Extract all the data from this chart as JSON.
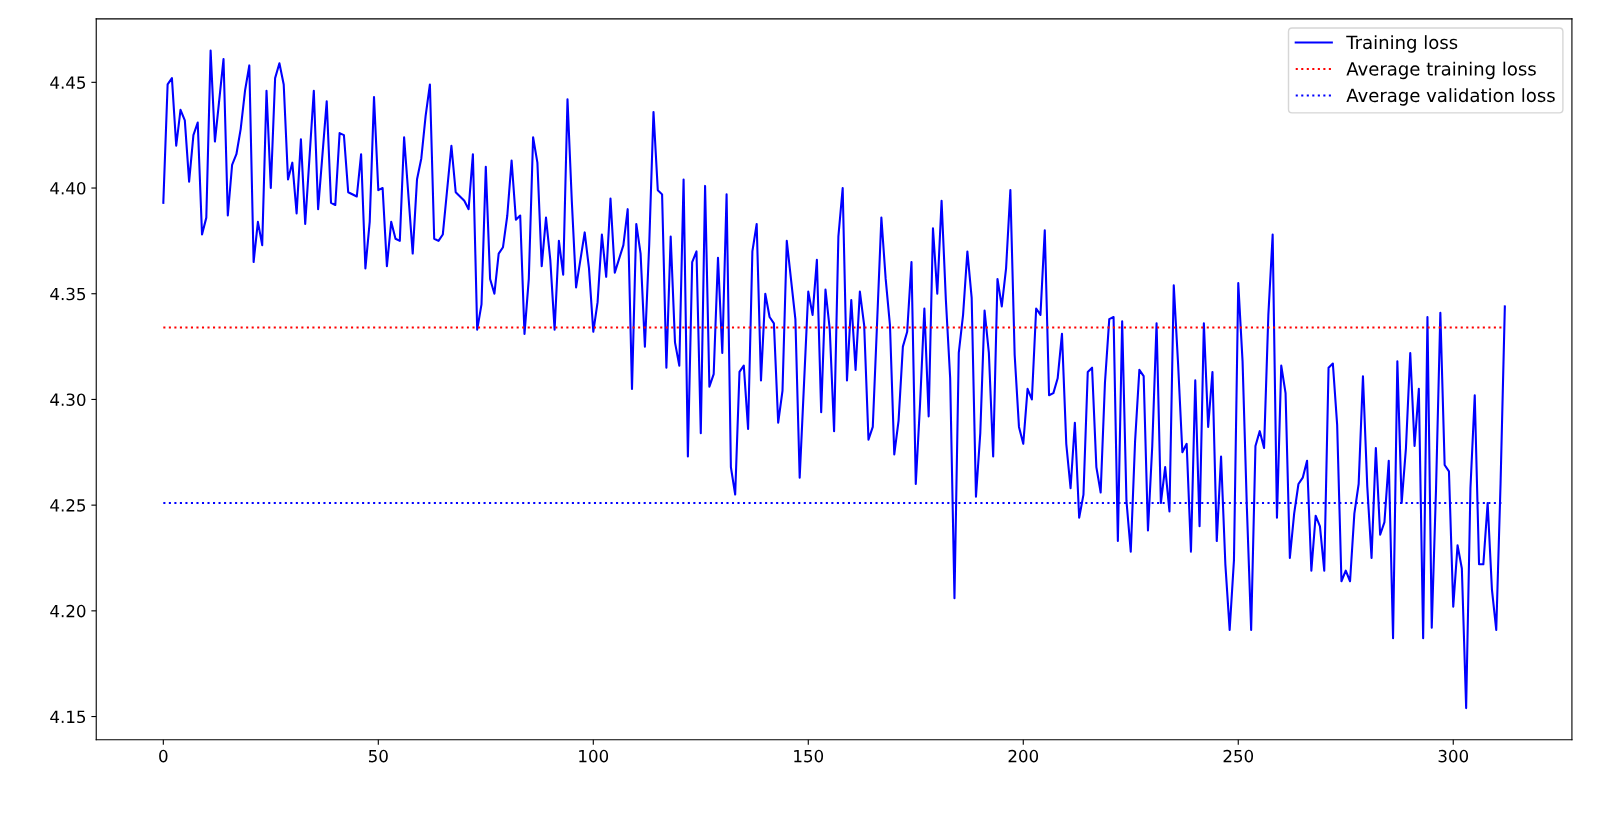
{
  "chart_data": {
    "type": "line",
    "x": [
      0,
      1,
      2,
      3,
      4,
      5,
      6,
      7,
      8,
      9,
      10,
      11,
      12,
      14,
      15,
      16,
      17,
      18,
      19,
      20,
      21,
      22,
      23,
      24,
      25,
      26,
      27,
      28,
      29,
      30,
      31,
      32,
      33,
      35,
      36,
      38,
      39,
      40,
      41,
      42,
      43,
      45,
      46,
      47,
      48,
      49,
      50,
      51,
      52,
      53,
      54,
      55,
      56,
      58,
      59,
      60,
      61,
      62,
      63,
      64,
      65,
      67,
      68,
      70,
      71,
      72,
      73,
      74,
      75,
      76,
      77,
      78,
      79,
      80,
      81,
      82,
      83,
      84,
      85,
      86,
      87,
      88,
      89,
      90,
      91,
      92,
      93,
      94,
      95,
      96,
      97,
      98,
      99,
      100,
      101,
      102,
      103,
      104,
      105,
      107,
      108,
      109,
      110,
      111,
      112,
      113,
      114,
      115,
      116,
      117,
      118,
      119,
      120,
      121,
      122,
      123,
      124,
      125,
      126,
      127,
      128,
      129,
      130,
      131,
      132,
      133,
      134,
      135,
      136,
      137,
      138,
      139,
      140,
      141,
      142,
      143,
      144,
      145,
      147,
      148,
      150,
      151,
      152,
      153,
      154,
      155,
      156,
      157,
      158,
      159,
      160,
      161,
      162,
      163,
      164,
      165,
      166,
      167,
      168,
      169,
      170,
      171,
      172,
      173,
      174,
      175,
      176,
      177,
      178,
      179,
      180,
      181,
      182,
      183,
      184,
      185,
      186,
      187,
      188,
      189,
      190,
      191,
      192,
      193,
      194,
      195,
      196,
      197,
      198,
      199,
      200,
      201,
      202,
      203,
      204,
      205,
      206,
      207,
      208,
      209,
      210,
      211,
      212,
      213,
      214,
      215,
      216,
      217,
      218,
      219,
      220,
      221,
      222,
      223,
      224,
      225,
      226,
      227,
      228,
      229,
      230,
      231,
      232,
      233,
      234,
      235,
      236,
      237,
      238,
      239,
      240,
      241,
      242,
      243,
      244,
      245,
      246,
      247,
      248,
      249,
      250,
      251,
      252,
      253,
      254,
      255,
      256,
      257,
      258,
      259,
      260,
      261,
      262,
      263,
      264,
      265,
      266,
      267,
      268,
      269,
      270,
      271,
      272,
      273,
      274,
      275,
      276,
      277,
      278,
      279,
      280,
      281,
      282,
      283,
      284,
      285,
      286,
      287,
      288,
      289,
      290,
      291,
      292,
      293,
      294,
      295,
      296,
      297,
      298,
      299,
      300,
      301,
      302,
      303,
      304,
      305,
      306,
      307,
      308,
      309,
      310,
      311,
      312
    ],
    "series": [
      {
        "name": "Training loss",
        "color": "#0000ff",
        "values": [
          4.393,
          4.449,
          4.452,
          4.42,
          4.437,
          4.432,
          4.403,
          4.425,
          4.431,
          4.378,
          4.386,
          4.465,
          4.422,
          4.461,
          4.387,
          4.411,
          4.416,
          4.428,
          4.446,
          4.458,
          4.365,
          4.384,
          4.373,
          4.446,
          4.4,
          4.452,
          4.459,
          4.449,
          4.404,
          4.412,
          4.388,
          4.423,
          4.383,
          4.446,
          4.39,
          4.441,
          4.393,
          4.392,
          4.426,
          4.425,
          4.398,
          4.396,
          4.416,
          4.362,
          4.384,
          4.443,
          4.399,
          4.4,
          4.363,
          4.384,
          4.376,
          4.375,
          4.424,
          4.369,
          4.404,
          4.414,
          4.434,
          4.449,
          4.376,
          4.375,
          4.378,
          4.42,
          4.398,
          4.394,
          4.39,
          4.416,
          4.333,
          4.345,
          4.41,
          4.357,
          4.35,
          4.369,
          4.372,
          4.387,
          4.413,
          4.385,
          4.387,
          4.331,
          4.357,
          4.424,
          4.412,
          4.363,
          4.386,
          4.366,
          4.333,
          4.375,
          4.359,
          4.442,
          4.394,
          4.353,
          4.366,
          4.379,
          4.362,
          4.332,
          4.346,
          4.378,
          4.358,
          4.395,
          4.36,
          4.373,
          4.39,
          4.305,
          4.383,
          4.369,
          4.325,
          4.373,
          4.436,
          4.399,
          4.397,
          4.315,
          4.377,
          4.327,
          4.316,
          4.404,
          4.273,
          4.365,
          4.37,
          4.284,
          4.401,
          4.306,
          4.312,
          4.367,
          4.322,
          4.397,
          4.268,
          4.255,
          4.313,
          4.316,
          4.286,
          4.37,
          4.383,
          4.309,
          4.35,
          4.339,
          4.336,
          4.289,
          4.304,
          4.375,
          4.338,
          4.263,
          4.351,
          4.34,
          4.366,
          4.294,
          4.352,
          4.333,
          4.285,
          4.377,
          4.4,
          4.309,
          4.347,
          4.314,
          4.351,
          4.335,
          4.281,
          4.287,
          4.336,
          4.386,
          4.357,
          4.335,
          4.274,
          4.29,
          4.325,
          4.332,
          4.365,
          4.26,
          4.298,
          4.343,
          4.292,
          4.381,
          4.35,
          4.394,
          4.347,
          4.31,
          4.206,
          4.322,
          4.34,
          4.37,
          4.348,
          4.254,
          4.284,
          4.342,
          4.322,
          4.273,
          4.357,
          4.344,
          4.362,
          4.399,
          4.321,
          4.287,
          4.279,
          4.305,
          4.3,
          4.343,
          4.34,
          4.38,
          4.302,
          4.303,
          4.31,
          4.331,
          4.279,
          4.258,
          4.289,
          4.244,
          4.255,
          4.313,
          4.315,
          4.268,
          4.256,
          4.308,
          4.338,
          4.339,
          4.233,
          4.337,
          4.252,
          4.228,
          4.28,
          4.314,
          4.311,
          4.238,
          4.278,
          4.336,
          4.251,
          4.268,
          4.247,
          4.354,
          4.317,
          4.275,
          4.279,
          4.228,
          4.309,
          4.24,
          4.336,
          4.287,
          4.313,
          4.233,
          4.273,
          4.222,
          4.191,
          4.224,
          4.355,
          4.318,
          4.249,
          4.191,
          4.278,
          4.285,
          4.277,
          4.34,
          4.378,
          4.244,
          4.316,
          4.303,
          4.225,
          4.246,
          4.26,
          4.263,
          4.271,
          4.219,
          4.245,
          4.24,
          4.219,
          4.315,
          4.317,
          4.288,
          4.214,
          4.219,
          4.214,
          4.246,
          4.26,
          4.311,
          4.259,
          4.225,
          4.277,
          4.236,
          4.242,
          4.271,
          4.187,
          4.318,
          4.251,
          4.277,
          4.322,
          4.278,
          4.305,
          4.187,
          4.339,
          4.192,
          4.258,
          4.341,
          4.269,
          4.266,
          4.202,
          4.231,
          4.22,
          4.154,
          4.258,
          4.302,
          4.222,
          4.222,
          4.251,
          4.21,
          4.191,
          4.26,
          4.344
        ]
      }
    ],
    "ref_lines": [
      {
        "axis": "y",
        "value": 4.334,
        "label": "Average training loss",
        "color": "#ff0000",
        "line_style": "dotted"
      },
      {
        "axis": "y",
        "value": 4.251,
        "label": "Average validation loss",
        "color": "#0000ff",
        "line_style": "dotted"
      }
    ],
    "xlim": [
      -15.6,
      327.6
    ],
    "xticks": [
      0,
      50,
      100,
      150,
      200,
      250,
      300
    ],
    "ylim": [
      4.139,
      4.48
    ],
    "yticks": [
      4.15,
      {
        "value": 4.2,
        "label": "4.20"
      },
      4.25,
      {
        "value": 4.3,
        "label": "4.30"
      },
      4.35,
      {
        "value": 4.4,
        "label": "4.40"
      },
      4.45
    ],
    "legend": "top right",
    "grid": false,
    "line_style": "solid",
    "marker": "none"
  }
}
